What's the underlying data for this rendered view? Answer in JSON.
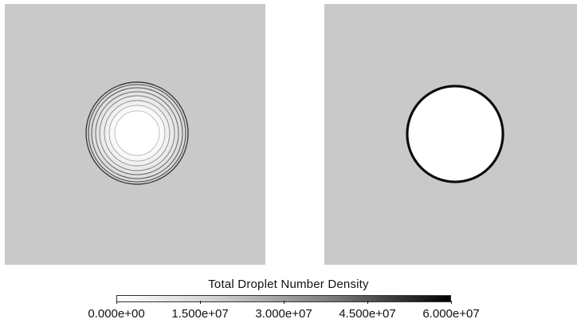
{
  "legend": {
    "title": "Total Droplet Number Density",
    "ticks": [
      "0.000e+00",
      "1.500e+07",
      "3.000e+07",
      "4.500e+07",
      "6.000e+07"
    ],
    "range": [
      0,
      60000000
    ],
    "gradient_colors": [
      "#ffffff",
      "#000000"
    ]
  },
  "panels": {
    "left": {
      "background_color": "#c9c9c9",
      "description_icon": "concentric-contour-rings"
    },
    "right": {
      "background_color": "#c9c9c9",
      "description_icon": "sharp-ring-boundary"
    }
  }
}
